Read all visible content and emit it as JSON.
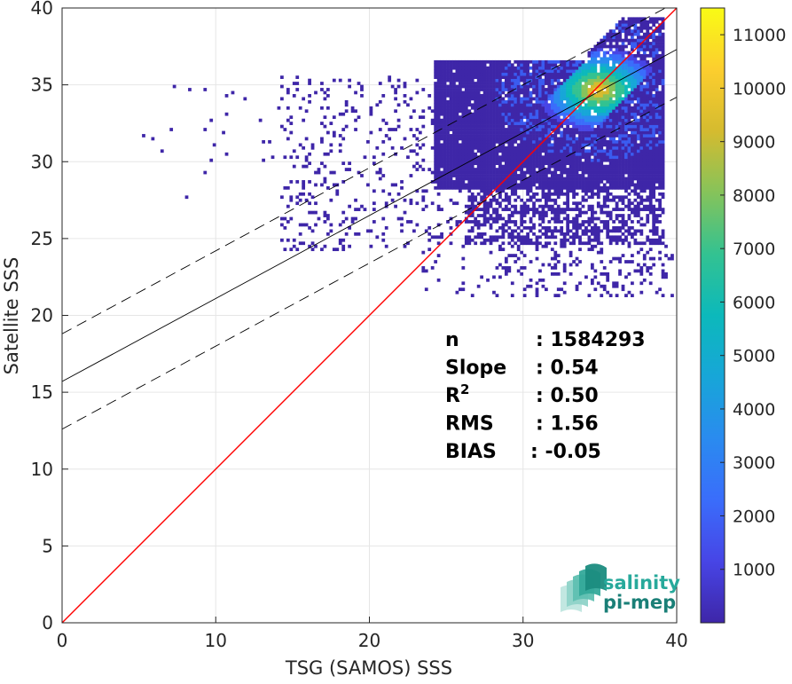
{
  "chart_data": {
    "type": "heatmap",
    "subtype": "2D density scatter",
    "title": "",
    "xlabel": "TSG (SAMOS) SSS",
    "ylabel": "Satellite SSS",
    "xlim": [
      0,
      40
    ],
    "ylim": [
      0,
      40
    ],
    "xticks": [
      0,
      10,
      20,
      30,
      40
    ],
    "yticks": [
      0,
      5,
      10,
      15,
      20,
      25,
      30,
      35,
      40
    ],
    "grid": true,
    "colorbar": {
      "colormap": "parula",
      "range": [
        0,
        11500
      ],
      "ticks": [
        1000,
        2000,
        3000,
        4000,
        5000,
        6000,
        7000,
        8000,
        9000,
        10000,
        11000
      ]
    },
    "density_regions": [
      {
        "x": [
          24,
          39
        ],
        "y": [
          28,
          36.5
        ],
        "density": "low",
        "color": "#3e26a8"
      },
      {
        "x": [
          29,
          36
        ],
        "y": [
          29,
          35.5
        ],
        "density": "medium",
        "color": "#3a5bf0"
      },
      {
        "x": [
          33,
          36
        ],
        "y": [
          33.5,
          35.5
        ],
        "density": "high",
        "color": "#fcce2e"
      }
    ],
    "lines": [
      {
        "role": "identity",
        "slope": 1.0,
        "intercept": 0,
        "color": "#ff0000",
        "style": "solid"
      },
      {
        "role": "regression",
        "slope": 0.54,
        "intercept": 15.7,
        "color": "#000000",
        "style": "solid"
      },
      {
        "role": "regression-plus",
        "slope": 0.54,
        "intercept": 18.8,
        "color": "#000000",
        "style": "dashed"
      },
      {
        "role": "regression-minus",
        "slope": 0.54,
        "intercept": 12.6,
        "color": "#000000",
        "style": "dashed"
      }
    ],
    "stats": [
      {
        "label": "n",
        "value": ": 1584293"
      },
      {
        "label": "Slope",
        "value": ": 0.54"
      },
      {
        "label": "R",
        "sup": "2",
        "value": ": 0.50"
      },
      {
        "label": "RMS",
        "value": ": 1.56"
      },
      {
        "label": "BIAS",
        "value": ": -0.05"
      }
    ],
    "logo": {
      "line1": "salinity",
      "line2": "pi-mep",
      "color1": "#27a99b",
      "color2": "#1a7f77"
    }
  }
}
